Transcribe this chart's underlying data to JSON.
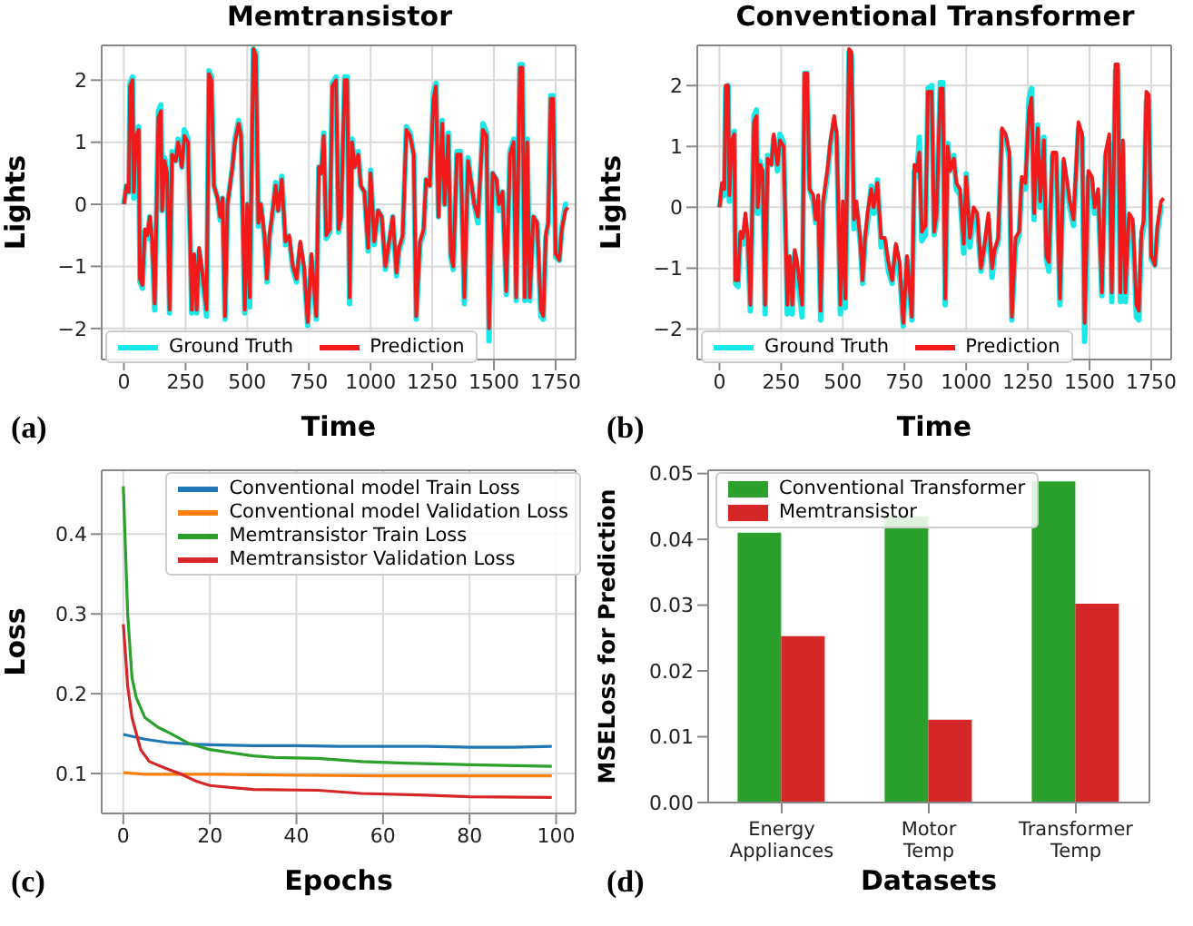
{
  "chart_data": [
    {
      "type": "line",
      "title": "Memtransistor",
      "xlabel": "Time",
      "ylabel": "Lights",
      "annotations": [
        "(a)"
      ],
      "xlim": [
        -90,
        1831
      ],
      "ylim": [
        -2.5,
        2.56
      ],
      "xticks": [
        0,
        250,
        500,
        750,
        1000,
        1250,
        1500,
        1750
      ],
      "yticks": [
        -2,
        -1,
        0,
        1,
        2
      ],
      "grid": true,
      "legend": "bottom",
      "x": [
        0,
        10,
        20,
        25,
        35,
        40,
        50,
        60,
        65,
        75,
        85,
        95,
        105,
        115,
        125,
        140,
        150,
        155,
        165,
        175,
        185,
        195,
        210,
        220,
        235,
        245,
        260,
        275,
        285,
        295,
        305,
        315,
        335,
        345,
        355,
        365,
        380,
        390,
        400,
        410,
        420,
        440,
        450,
        465,
        475,
        490,
        500,
        510,
        525,
        535,
        545,
        555,
        570,
        580,
        590,
        600,
        615,
        625,
        640,
        655,
        670,
        685,
        700,
        715,
        730,
        745,
        760,
        780,
        790,
        800,
        810,
        820,
        835,
        845,
        860,
        870,
        880,
        895,
        905,
        915,
        925,
        935,
        950,
        960,
        975,
        990,
        1000,
        1015,
        1030,
        1045,
        1060,
        1075,
        1090,
        1105,
        1115,
        1130,
        1145,
        1160,
        1175,
        1185,
        1200,
        1215,
        1225,
        1240,
        1255,
        1265,
        1275,
        1290,
        1300,
        1315,
        1325,
        1335,
        1350,
        1365,
        1380,
        1395,
        1410,
        1420,
        1435,
        1455,
        1470,
        1480,
        1495,
        1510,
        1520,
        1535,
        1550,
        1565,
        1580,
        1590,
        1605,
        1615,
        1625,
        1635,
        1645,
        1660,
        1675,
        1690,
        1700,
        1710,
        1720,
        1730,
        1740,
        1750,
        1765,
        1775,
        1790,
        1800
      ],
      "series": [
        {
          "name": "Ground Truth",
          "color": "#19e8e8",
          "values": [
            0,
            0.3,
            0.2,
            1.95,
            2.05,
            0.1,
            1.15,
            1.25,
            -1.25,
            -1.35,
            -0.45,
            -0.55,
            -0.2,
            -0.65,
            -1.7,
            1.5,
            1.6,
            -0.1,
            0.75,
            0.5,
            -1.75,
            0.85,
            0.7,
            1.05,
            0.6,
            1.2,
            1.05,
            -1.75,
            -0.85,
            -1.75,
            -0.75,
            -1.05,
            -1.8,
            2.15,
            2.05,
            0.3,
            0.1,
            -0.25,
            0.1,
            -1.85,
            0,
            0.6,
            1.05,
            1.35,
            1.15,
            -1.75,
            0,
            -1.65,
            2.5,
            2.45,
            -0.35,
            0,
            -0.55,
            -1.25,
            -0.55,
            -0.25,
            0.35,
            -0.1,
            0.45,
            -0.65,
            -0.55,
            -1.05,
            -1.25,
            -0.65,
            -1.05,
            -1.95,
            -0.85,
            -1.85,
            0.6,
            0.5,
            1.15,
            -0.55,
            -0.45,
            1.95,
            2.05,
            -0.45,
            -0.2,
            2.05,
            2.05,
            -1.6,
            1.05,
            0.6,
            0.85,
            0.3,
            0.2,
            -0.75,
            0.55,
            -0.65,
            -0.1,
            -0.2,
            -1.05,
            -0.65,
            -0.2,
            -1.15,
            -0.75,
            -0.55,
            1.25,
            1.15,
            0.8,
            -1.85,
            -0.65,
            -0.45,
            0.4,
            0.3,
            1.8,
            1.95,
            -0.2,
            1.35,
            0,
            1.15,
            -0.85,
            -1.05,
            0.85,
            0.85,
            -1.6,
            0.75,
            0.3,
            0,
            -0.3,
            1.3,
            1.15,
            -2.2,
            0.5,
            0.4,
            -0.1,
            0.2,
            -1.45,
            0.85,
            1.05,
            -1.55,
            2.25,
            2.25,
            -1.55,
            1.05,
            -1.55,
            -0.2,
            -0.3,
            -1.8,
            -1.85,
            -0.55,
            -0.3,
            1.75,
            1.75,
            -0.85,
            -0.9,
            -0.4,
            0,
            0
          ]
        },
        {
          "name": "Prediction",
          "color": "#f21a1a",
          "values": [
            0,
            0.3,
            0.2,
            1.9,
            2.0,
            0.2,
            1.1,
            1.2,
            -1.2,
            -1.3,
            -0.4,
            -0.5,
            -0.2,
            -0.6,
            -1.6,
            1.4,
            1.5,
            -0.1,
            0.7,
            0.5,
            -1.7,
            0.8,
            0.7,
            1.0,
            0.6,
            1.1,
            1.0,
            -1.7,
            -0.8,
            -1.7,
            -0.7,
            -1.0,
            -1.7,
            2.1,
            2.0,
            0.3,
            0.1,
            -0.2,
            0.1,
            -1.8,
            0,
            0.6,
            1.0,
            1.3,
            1.1,
            -1.7,
            0,
            -1.5,
            2.5,
            2.4,
            -0.3,
            0,
            -0.5,
            -1.2,
            -0.5,
            -0.2,
            0.3,
            -0.1,
            0.4,
            -0.6,
            -0.5,
            -1.0,
            -1.2,
            -0.6,
            -1.0,
            -1.9,
            -0.8,
            -1.8,
            0.6,
            0.5,
            1.1,
            -0.5,
            -0.4,
            1.9,
            2.0,
            -0.4,
            -0.2,
            2.0,
            2.0,
            -1.5,
            1.0,
            0.6,
            0.8,
            0.3,
            0.2,
            -0.7,
            0.5,
            -0.6,
            -0.1,
            -0.2,
            -1.0,
            -0.6,
            -0.2,
            -1.1,
            -0.7,
            -0.5,
            1.2,
            1.1,
            0.8,
            -1.8,
            -0.6,
            -0.4,
            0.4,
            0.3,
            1.7,
            1.9,
            -0.2,
            1.3,
            0,
            1.1,
            -0.8,
            -1.0,
            0.8,
            0.8,
            -1.5,
            0.7,
            0.3,
            0,
            -0.2,
            1.2,
            1.1,
            -2.0,
            0.5,
            0.4,
            0,
            0.2,
            -1.4,
            0.8,
            1.0,
            -1.5,
            2.2,
            2.2,
            -1.5,
            1.0,
            -1.5,
            -0.2,
            -0.3,
            -1.7,
            -1.8,
            -0.5,
            -0.3,
            1.7,
            1.7,
            -0.8,
            -0.9,
            -0.4,
            -0.1,
            -0.05
          ]
        }
      ]
    },
    {
      "type": "line",
      "title": "Conventional Transformer",
      "xlabel": "Time",
      "ylabel": "Lights",
      "annotations": [
        "(b)"
      ],
      "xlim": [
        -90,
        1831
      ],
      "ylim": [
        -2.5,
        2.66
      ],
      "xticks": [
        0,
        250,
        500,
        750,
        1000,
        1250,
        1500,
        1750
      ],
      "yticks": [
        -2,
        -1,
        0,
        1,
        2
      ],
      "grid": true,
      "legend": "bottom",
      "x": [
        0,
        10,
        20,
        25,
        35,
        40,
        50,
        60,
        65,
        75,
        85,
        95,
        105,
        115,
        125,
        140,
        150,
        155,
        165,
        175,
        185,
        195,
        210,
        220,
        235,
        245,
        260,
        275,
        285,
        295,
        305,
        315,
        335,
        345,
        355,
        365,
        380,
        390,
        400,
        410,
        420,
        440,
        450,
        465,
        475,
        490,
        500,
        510,
        525,
        535,
        545,
        555,
        570,
        580,
        590,
        600,
        615,
        625,
        640,
        655,
        670,
        685,
        700,
        715,
        730,
        745,
        760,
        780,
        790,
        800,
        810,
        820,
        835,
        845,
        860,
        870,
        880,
        895,
        905,
        915,
        925,
        935,
        950,
        960,
        975,
        990,
        1000,
        1015,
        1030,
        1045,
        1060,
        1075,
        1090,
        1105,
        1115,
        1130,
        1145,
        1160,
        1175,
        1185,
        1200,
        1215,
        1225,
        1240,
        1255,
        1265,
        1275,
        1290,
        1300,
        1315,
        1325,
        1335,
        1350,
        1365,
        1380,
        1395,
        1410,
        1420,
        1435,
        1455,
        1470,
        1480,
        1495,
        1510,
        1520,
        1535,
        1550,
        1565,
        1580,
        1590,
        1605,
        1615,
        1625,
        1635,
        1645,
        1660,
        1675,
        1690,
        1700,
        1710,
        1720,
        1730,
        1740,
        1750,
        1765,
        1775,
        1790,
        1800
      ],
      "series": [
        {
          "name": "Ground Truth",
          "color": "#19e8e8",
          "values": [
            0,
            0.3,
            0.2,
            1.95,
            2.0,
            0.1,
            1.15,
            1.25,
            -1.25,
            -1.3,
            -0.45,
            -0.6,
            -0.2,
            -0.65,
            -1.7,
            1.5,
            1.6,
            -0.1,
            0.75,
            0.5,
            -1.75,
            0.85,
            0.7,
            1.15,
            0.6,
            1.2,
            1.05,
            -1.75,
            -0.85,
            -1.75,
            -0.75,
            -1.05,
            -1.8,
            2.2,
            2.2,
            0.3,
            0.1,
            -0.25,
            0.1,
            -1.85,
            0,
            0.6,
            1.05,
            1.4,
            1.15,
            -1.75,
            0,
            -1.65,
            2.55,
            2.5,
            -0.35,
            0,
            -0.55,
            -1.25,
            -0.55,
            -0.25,
            0.35,
            -0.1,
            0.45,
            -0.65,
            -0.55,
            -1.05,
            -1.25,
            -0.65,
            -1.05,
            -1.95,
            -0.85,
            -1.85,
            0.6,
            0.5,
            1.15,
            -0.55,
            -0.45,
            1.95,
            2.0,
            -0.45,
            -0.2,
            2.05,
            2.05,
            -1.6,
            1.05,
            0.6,
            0.85,
            0.3,
            0.2,
            -0.75,
            0.55,
            -0.65,
            -0.1,
            -0.2,
            -1.05,
            -0.65,
            -0.2,
            -1.15,
            -0.75,
            -0.55,
            1.25,
            1.15,
            0.8,
            -1.85,
            -0.65,
            -0.45,
            0.4,
            0.3,
            1.8,
            1.95,
            -0.2,
            1.35,
            0,
            1.15,
            -0.85,
            -1.05,
            0.85,
            0.85,
            -1.6,
            0.75,
            0.3,
            0,
            -0.3,
            1.3,
            1.15,
            -2.2,
            0.5,
            0.4,
            -0.1,
            0.2,
            -1.45,
            0.85,
            1.05,
            -1.55,
            2.25,
            2.25,
            -1.55,
            1.05,
            -1.55,
            -0.2,
            -0.3,
            -1.8,
            -1.85,
            -0.55,
            -0.3,
            1.75,
            1.75,
            -0.85,
            -0.95,
            -0.4,
            0,
            0
          ]
        },
        {
          "name": "Prediction",
          "color": "#f21a1a",
          "values": [
            0,
            0.4,
            0.3,
            2.0,
            2.0,
            0.2,
            1.1,
            1.2,
            -1.2,
            -1.2,
            -0.4,
            -0.5,
            -0.1,
            -0.5,
            -1.6,
            1.4,
            1.5,
            0,
            0.7,
            0.6,
            -1.6,
            0.8,
            0.7,
            1.2,
            0.7,
            1.1,
            1.0,
            -1.6,
            -0.8,
            -1.6,
            -0.7,
            -0.9,
            -1.6,
            2.2,
            2.2,
            0.3,
            0.2,
            -0.2,
            0.2,
            -1.7,
            0.1,
            0.7,
            1.1,
            1.5,
            1.2,
            -1.6,
            0.1,
            -1.5,
            2.6,
            2.55,
            -0.2,
            0.1,
            -0.5,
            -1.2,
            -0.5,
            -0.1,
            0.3,
            0,
            0.4,
            -0.5,
            -0.5,
            -0.9,
            -1.2,
            -0.6,
            -0.9,
            -1.9,
            -0.8,
            -1.8,
            0.7,
            0.6,
            0.9,
            -0.4,
            -0.3,
            1.9,
            1.9,
            -0.4,
            -0.1,
            1.95,
            1.95,
            -1.5,
            1.0,
            0.6,
            0.8,
            0.4,
            0.3,
            -0.6,
            0.5,
            -0.5,
            0,
            -0.1,
            -1.0,
            -0.6,
            -0.1,
            -1.0,
            -0.7,
            -0.5,
            1.3,
            1.2,
            0.9,
            -1.8,
            -0.5,
            -0.4,
            0.5,
            0.4,
            1.6,
            1.8,
            -0.1,
            1.3,
            0.1,
            1.1,
            -0.8,
            -0.9,
            0.9,
            0.9,
            -1.5,
            0.8,
            0.4,
            0.1,
            -0.2,
            1.4,
            1.2,
            -1.9,
            0.6,
            0.5,
            0,
            0.3,
            -1.4,
            0.9,
            1.2,
            -1.4,
            2.35,
            2.35,
            -1.4,
            1.1,
            -1.4,
            -0.1,
            -0.2,
            -1.6,
            -1.7,
            -0.4,
            -0.2,
            1.9,
            1.85,
            -0.8,
            -0.95,
            -0.3,
            0.1,
            0.15
          ]
        }
      ]
    },
    {
      "type": "line",
      "xlabel": "Epochs",
      "ylabel": "Loss",
      "annotations": [
        "(c)"
      ],
      "xlim": [
        -5,
        104.5
      ],
      "ylim": [
        0.05,
        0.48
      ],
      "xticks": [
        0,
        20,
        40,
        60,
        80,
        100
      ],
      "yticks": [
        0.1,
        0.2,
        0.3,
        0.4
      ],
      "grid": true,
      "legend": "top right",
      "series": [
        {
          "name": "Conventional model Train Loss",
          "color": "#1f77b4",
          "x": [
            0,
            5,
            10,
            15,
            20,
            30,
            40,
            50,
            60,
            70,
            80,
            90,
            99
          ],
          "values": [
            0.149,
            0.143,
            0.139,
            0.137,
            0.136,
            0.135,
            0.135,
            0.134,
            0.134,
            0.134,
            0.133,
            0.133,
            0.134
          ]
        },
        {
          "name": "Conventional model Validation Loss",
          "color": "#ff7f0e",
          "x": [
            0,
            5,
            20,
            40,
            60,
            80,
            99
          ],
          "values": [
            0.101,
            0.099,
            0.099,
            0.098,
            0.097,
            0.097,
            0.097
          ]
        },
        {
          "name": "Memtransistor Train Loss",
          "color": "#2ca02c",
          "x": [
            0,
            1,
            2,
            3,
            5,
            8,
            11,
            15,
            20,
            30,
            35,
            45,
            55,
            65,
            80,
            99
          ],
          "values": [
            0.46,
            0.3,
            0.22,
            0.195,
            0.17,
            0.158,
            0.15,
            0.138,
            0.13,
            0.122,
            0.12,
            0.119,
            0.115,
            0.113,
            0.111,
            0.109
          ]
        },
        {
          "name": "Memtransistor Validation Loss",
          "color": "#d62728",
          "x": [
            0,
            1,
            2,
            4,
            6,
            10,
            13,
            17,
            20,
            30,
            45,
            55,
            70,
            80,
            99
          ],
          "values": [
            0.287,
            0.21,
            0.17,
            0.13,
            0.115,
            0.106,
            0.1,
            0.09,
            0.085,
            0.08,
            0.079,
            0.075,
            0.073,
            0.071,
            0.07
          ]
        }
      ]
    },
    {
      "type": "bar",
      "xlabel": "Datasets",
      "ylabel": "MSELoss for Prediction",
      "annotations": [
        "(d)"
      ],
      "categories": [
        "Energy Appliances",
        "Motor Temp",
        "Transformer Temp"
      ],
      "ylim": [
        0,
        0.0505
      ],
      "yticks": [
        {
          "value": 0,
          "label": "0.00"
        },
        {
          "value": 0.01,
          "label": "0.01"
        },
        {
          "value": 0.02,
          "label": "0.02"
        },
        {
          "value": 0.03,
          "label": "0.03"
        },
        {
          "value": 0.04,
          "label": "0.04"
        },
        {
          "value": 0.05,
          "label": "0.05"
        }
      ],
      "grid": false,
      "legend": "top left",
      "series": [
        {
          "name": "Conventional Transformer",
          "color": "#2ca02c",
          "values": [
            0.041,
            0.0435,
            0.0488
          ]
        },
        {
          "name": "Memtransistor",
          "color": "#d62728",
          "values": [
            0.0253,
            0.0126,
            0.0302
          ]
        }
      ]
    }
  ]
}
